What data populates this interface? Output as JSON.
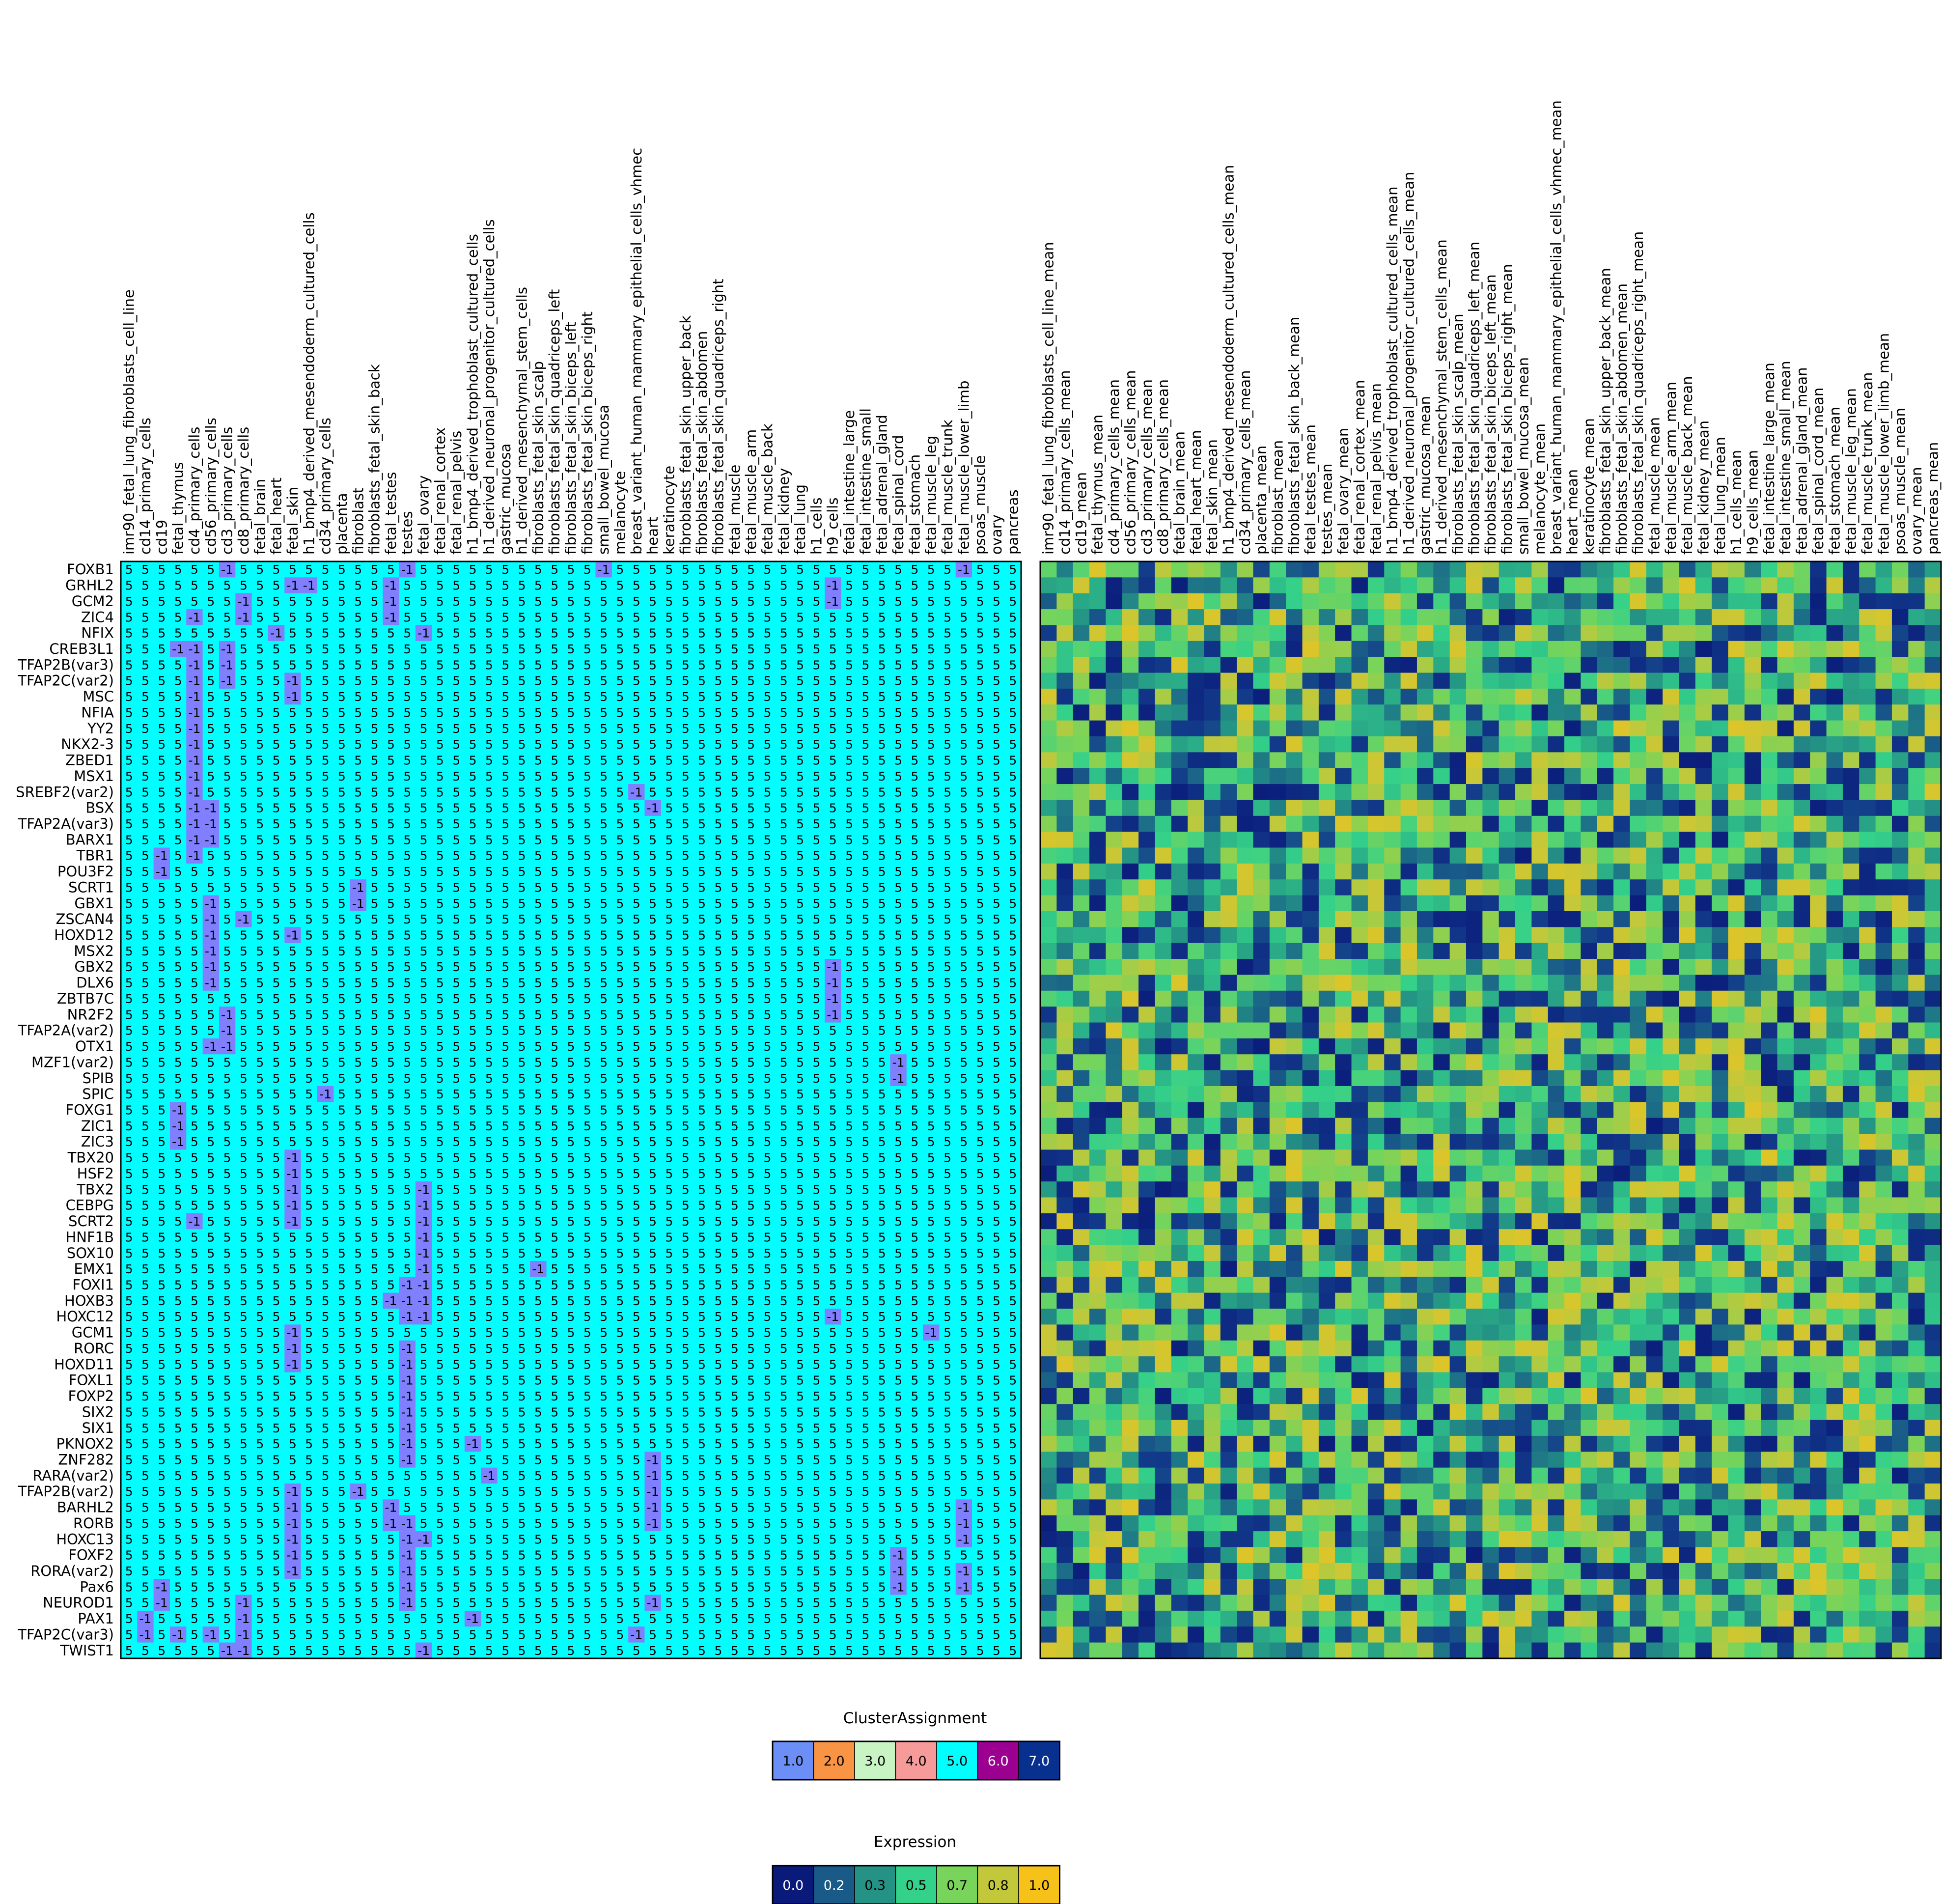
{
  "chart_data": [
    {
      "type": "heatmap",
      "title": "",
      "xlabel": "",
      "ylabel": "",
      "columns": [
        "imr90_fetal_lung_fibroblasts_cell_line",
        "cd14_primary_cells",
        "cd19",
        "fetal_thymus",
        "cd4_primary_cells",
        "cd56_primary_cells",
        "cd3_primary_cells",
        "cd8_primary_cells",
        "fetal_brain",
        "fetal_heart",
        "fetal_skin",
        "h1_bmp4_derived_mesendoderm_cultured_cells",
        "cd34_primary_cells",
        "placenta",
        "fibroblast",
        "fibroblasts_fetal_skin_back",
        "fetal_testes",
        "testes",
        "fetal_ovary",
        "fetal_renal_cortex",
        "fetal_renal_pelvis",
        "h1_bmp4_derived_trophoblast_cultured_cells",
        "h1_derived_neuronal_progenitor_cultured_cells",
        "gastric_mucosa",
        "h1_derived_mesenchymal_stem_cells",
        "fibroblasts_fetal_skin_scalp",
        "fibroblasts_fetal_skin_quadriceps_left",
        "fibroblasts_fetal_skin_biceps_left",
        "fibroblasts_fetal_skin_biceps_right",
        "small_bowel_mucosa",
        "melanocyte",
        "breast_variant_human_mammary_epithelial_cells_vhmec",
        "heart",
        "keratinocyte",
        "fibroblasts_fetal_skin_upper_back",
        "fibroblasts_fetal_skin_abdomen",
        "fibroblasts_fetal_skin_quadriceps_right",
        "fetal_muscle",
        "fetal_muscle_arm",
        "fetal_muscle_back",
        "fetal_kidney",
        "fetal_lung",
        "h1_cells",
        "h9_cells",
        "fetal_intestine_large",
        "fetal_intestine_small",
        "fetal_adrenal_gland",
        "fetal_spinal_cord",
        "fetal_stomach",
        "fetal_muscle_leg",
        "fetal_muscle_trunk",
        "fetal_muscle_lower_limb",
        "psoas_muscle",
        "ovary",
        "pancreas"
      ],
      "rows": [
        "FOXB1",
        "GRHL2",
        "GCM2",
        "ZIC4",
        "NFIX",
        "CREB3L1",
        "TFAP2B(var3)",
        "TFAP2C(var2)",
        "MSC",
        "NFIA",
        "YY2",
        "NKX2-3",
        "ZBED1",
        "MSX1",
        "SREBF2(var2)",
        "BSX",
        "TFAP2A(var3)",
        "BARX1",
        "TBR1",
        "POU3F2",
        "SCRT1",
        "GBX1",
        "ZSCAN4",
        "HOXD12",
        "MSX2",
        "GBX2",
        "DLX6",
        "ZBTB7C",
        "NR2F2",
        "TFAP2A(var2)",
        "OTX1",
        "MZF1(var2)",
        "SPIB",
        "SPIC",
        "FOXG1",
        "ZIC1",
        "ZIC3",
        "TBX20",
        "HSF2",
        "TBX2",
        "CEBPG",
        "SCRT2",
        "HNF1B",
        "SOX10",
        "EMX1",
        "FOXI1",
        "HOXB3",
        "HOXC12",
        "GCM1",
        "RORC",
        "HOXD11",
        "FOXL1",
        "FOXP2",
        "SIX2",
        "SIX1",
        "PKNOX2",
        "ZNF282",
        "RARA(var2)",
        "TFAP2B(var2)",
        "BARHL2",
        "RORB",
        "HOXC13",
        "FOXF2",
        "RORA(var2)",
        "Pax6",
        "NEUROD1",
        "PAX1",
        "TFAP2C(var3)",
        "TWIST1"
      ],
      "cell_value_default": 5,
      "cells_with_value_minus_1": [
        [
          0,
          6
        ],
        [
          0,
          17
        ],
        [
          0,
          29
        ],
        [
          0,
          51
        ],
        [
          1,
          10
        ],
        [
          1,
          11
        ],
        [
          1,
          16
        ],
        [
          1,
          43
        ],
        [
          2,
          7
        ],
        [
          2,
          16
        ],
        [
          2,
          43
        ],
        [
          3,
          4
        ],
        [
          3,
          7
        ],
        [
          3,
          16
        ],
        [
          4,
          9
        ],
        [
          4,
          18
        ],
        [
          5,
          3
        ],
        [
          5,
          4
        ],
        [
          5,
          6
        ],
        [
          6,
          4
        ],
        [
          6,
          6
        ],
        [
          7,
          4
        ],
        [
          7,
          6
        ],
        [
          7,
          10
        ],
        [
          8,
          4
        ],
        [
          8,
          10
        ],
        [
          9,
          4
        ],
        [
          10,
          4
        ],
        [
          11,
          4
        ],
        [
          12,
          4
        ],
        [
          13,
          4
        ],
        [
          14,
          4
        ],
        [
          14,
          31
        ],
        [
          15,
          4
        ],
        [
          15,
          5
        ],
        [
          15,
          32
        ],
        [
          16,
          4
        ],
        [
          16,
          5
        ],
        [
          17,
          4
        ],
        [
          17,
          5
        ],
        [
          18,
          2
        ],
        [
          18,
          4
        ],
        [
          19,
          2
        ],
        [
          20,
          14
        ],
        [
          21,
          5
        ],
        [
          21,
          14
        ],
        [
          22,
          5
        ],
        [
          22,
          7
        ],
        [
          23,
          5
        ],
        [
          23,
          10
        ],
        [
          24,
          5
        ],
        [
          25,
          5
        ],
        [
          25,
          43
        ],
        [
          26,
          5
        ],
        [
          26,
          43
        ],
        [
          27,
          43
        ],
        [
          28,
          6
        ],
        [
          28,
          43
        ],
        [
          29,
          6
        ],
        [
          30,
          5
        ],
        [
          30,
          6
        ],
        [
          31,
          47
        ],
        [
          32,
          47
        ],
        [
          33,
          12
        ],
        [
          34,
          3
        ],
        [
          35,
          3
        ],
        [
          36,
          3
        ],
        [
          37,
          10
        ],
        [
          38,
          10
        ],
        [
          39,
          10
        ],
        [
          39,
          18
        ],
        [
          40,
          10
        ],
        [
          40,
          18
        ],
        [
          41,
          4
        ],
        [
          41,
          10
        ],
        [
          41,
          18
        ],
        [
          42,
          18
        ],
        [
          43,
          18
        ],
        [
          44,
          18
        ],
        [
          44,
          25
        ],
        [
          45,
          17
        ],
        [
          45,
          18
        ],
        [
          46,
          16
        ],
        [
          46,
          17
        ],
        [
          46,
          18
        ],
        [
          47,
          17
        ],
        [
          47,
          18
        ],
        [
          47,
          43
        ],
        [
          48,
          10
        ],
        [
          48,
          49
        ],
        [
          49,
          10
        ],
        [
          49,
          17
        ],
        [
          50,
          10
        ],
        [
          50,
          17
        ],
        [
          51,
          17
        ],
        [
          52,
          17
        ],
        [
          53,
          17
        ],
        [
          54,
          17
        ],
        [
          55,
          17
        ],
        [
          55,
          21
        ],
        [
          56,
          17
        ],
        [
          56,
          32
        ],
        [
          57,
          22
        ],
        [
          57,
          32
        ],
        [
          58,
          10
        ],
        [
          58,
          14
        ],
        [
          58,
          32
        ],
        [
          59,
          10
        ],
        [
          59,
          16
        ],
        [
          59,
          32
        ],
        [
          59,
          51
        ],
        [
          60,
          10
        ],
        [
          60,
          16
        ],
        [
          60,
          17
        ],
        [
          60,
          32
        ],
        [
          60,
          51
        ],
        [
          61,
          10
        ],
        [
          61,
          17
        ],
        [
          61,
          18
        ],
        [
          61,
          51
        ],
        [
          62,
          10
        ],
        [
          62,
          17
        ],
        [
          62,
          47
        ],
        [
          63,
          10
        ],
        [
          63,
          17
        ],
        [
          63,
          47
        ],
        [
          63,
          51
        ],
        [
          64,
          2
        ],
        [
          64,
          17
        ],
        [
          64,
          47
        ],
        [
          64,
          51
        ],
        [
          65,
          2
        ],
        [
          65,
          7
        ],
        [
          65,
          17
        ],
        [
          65,
          32
        ],
        [
          66,
          1
        ],
        [
          66,
          7
        ],
        [
          66,
          21
        ],
        [
          67,
          1
        ],
        [
          67,
          3
        ],
        [
          67,
          5
        ],
        [
          67,
          7
        ],
        [
          67,
          31
        ],
        [
          68,
          6
        ],
        [
          68,
          7
        ],
        [
          68,
          18
        ]
      ],
      "cell_colors": {
        "5": "#00ffff",
        "-1": "#7f7fff"
      }
    },
    {
      "type": "heatmap",
      "title": "",
      "xlabel": "",
      "ylabel": "",
      "columns": [
        "imr90_fetal_lung_fibroblasts_cell_line_mean",
        "cd14_primary_cells_mean",
        "cd19_mean",
        "fetal_thymus_mean",
        "cd4_primary_cells_mean",
        "cd56_primary_cells_mean",
        "cd3_primary_cells_mean",
        "cd8_primary_cells_mean",
        "fetal_brain_mean",
        "fetal_heart_mean",
        "fetal_skin_mean",
        "h1_bmp4_derived_mesendoderm_cultured_cells_mean",
        "cd34_primary_cells_mean",
        "placenta_mean",
        "fibroblast_mean",
        "fibroblasts_fetal_skin_back_mean",
        "fetal_testes_mean",
        "testes_mean",
        "fetal_ovary_mean",
        "fetal_renal_cortex_mean",
        "fetal_renal_pelvis_mean",
        "h1_bmp4_derived_trophoblast_cultured_cells_mean",
        "h1_derived_neuronal_progenitor_cultured_cells_mean",
        "gastric_mucosa_mean",
        "h1_derived_mesenchymal_stem_cells_mean",
        "fibroblasts_fetal_skin_scalp_mean",
        "fibroblasts_fetal_skin_quadriceps_left_mean",
        "fibroblasts_fetal_skin_biceps_left_mean",
        "fibroblasts_fetal_skin_biceps_right_mean",
        "small_bowel_mucosa_mean",
        "melanocyte_mean",
        "breast_variant_human_mammary_epithelial_cells_vhmec_mean",
        "heart_mean",
        "keratinocyte_mean",
        "fibroblasts_fetal_skin_upper_back_mean",
        "fibroblasts_fetal_skin_abdomen_mean",
        "fibroblasts_fetal_skin_quadriceps_right_mean",
        "fetal_muscle_mean",
        "fetal_muscle_arm_mean",
        "fetal_muscle_back_mean",
        "fetal_kidney_mean",
        "fetal_lung_mean",
        "h1_cells_mean",
        "h9_cells_mean",
        "fetal_intestine_large_mean",
        "fetal_intestine_small_mean",
        "fetal_adrenal_gland_mean",
        "fetal_spinal_cord_mean",
        "fetal_stomach_mean",
        "fetal_muscle_leg_mean",
        "fetal_muscle_trunk_mean",
        "fetal_muscle_lower_limb_mean",
        "psoas_muscle_mean",
        "ovary_mean",
        "pancreas_mean"
      ],
      "rows_shared_with_left_panel": true,
      "value_range": [
        0,
        1
      ],
      "colormap": "viridis-like (dark blue to yellow)",
      "values_note": "random-looking matrix, values between 0 and 1; reproduced approximately"
    }
  ],
  "legends": [
    {
      "title": "ClusterAssignment",
      "entries": [
        {
          "label": "1.0",
          "color": "#6b8ff6"
        },
        {
          "label": "2.0",
          "color": "#f89444"
        },
        {
          "label": "3.0",
          "color": "#c8f4c4"
        },
        {
          "label": "4.0",
          "color": "#f79a9a"
        },
        {
          "label": "5.0",
          "color": "#00ffff"
        },
        {
          "label": "6.0",
          "color": "#9b0090"
        },
        {
          "label": "7.0",
          "color": "#08308f"
        }
      ]
    },
    {
      "title": "Expression",
      "entries": [
        {
          "label": "0.0",
          "color": "#0a1a7a"
        },
        {
          "label": "0.2",
          "color": "#1a5a88"
        },
        {
          "label": "0.3",
          "color": "#249285"
        },
        {
          "label": "0.5",
          "color": "#34d18a"
        },
        {
          "label": "0.7",
          "color": "#78d45a"
        },
        {
          "label": "0.8",
          "color": "#c2c83a"
        },
        {
          "label": "1.0",
          "color": "#f6c21a"
        }
      ]
    }
  ]
}
